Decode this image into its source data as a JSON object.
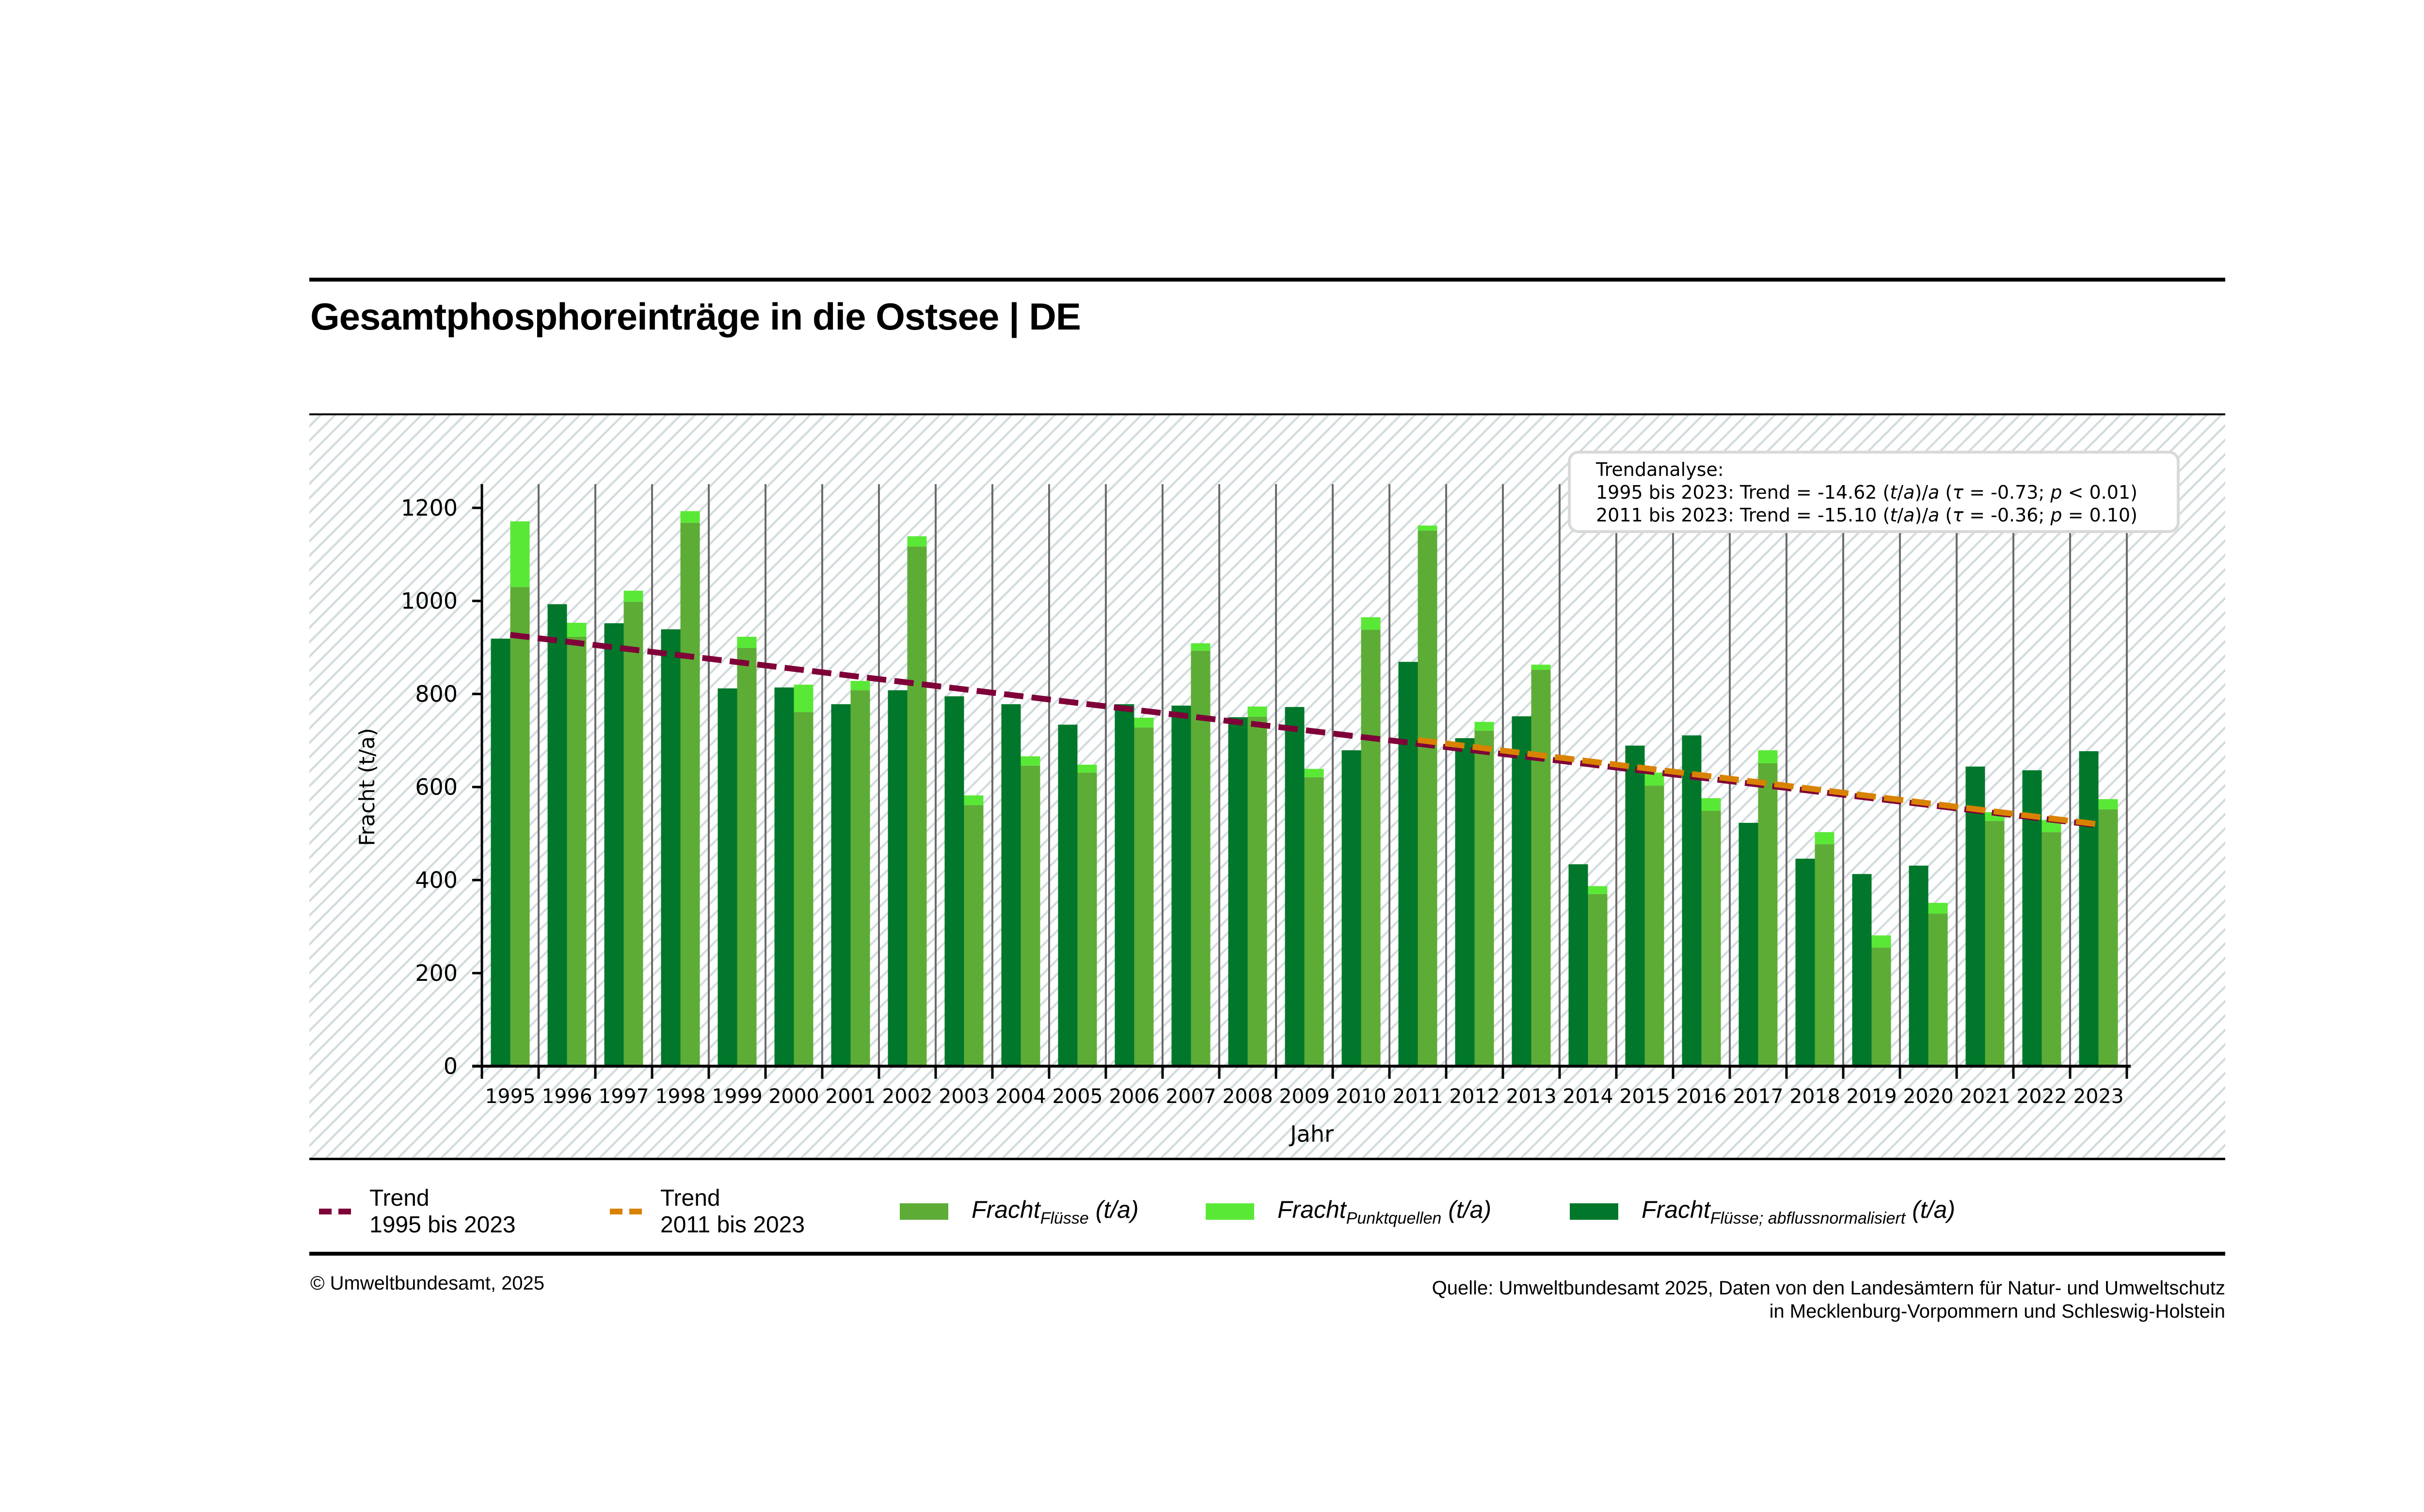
{
  "header": {
    "title": "Gesamtphosphoreinträge in die Ostsee | DE"
  },
  "colors": {
    "fracht_fluesse": "#5dac36",
    "fracht_punktquellen": "#5ae837",
    "fracht_abflussnormalisiert": "#00772b",
    "trend_1995_2023": "#7f0038",
    "trend_2011_2023": "#d98200",
    "hatch": "#d3dcde"
  },
  "annotation": {
    "heading": "Trendanalyse:",
    "lines": [
      {
        "period": "1995 bis 2023",
        "trend": "-14.62",
        "tau": "-0.73",
        "p_op": "<",
        "p": "0.01"
      },
      {
        "period": "2011 bis 2023",
        "trend": "-15.10",
        "tau": "-0.36",
        "p_op": "=",
        "p": "0.10"
      }
    ],
    "trend_label": "Trend =",
    "unit_t": "t",
    "unit_a": "a",
    "tau_symbol": "τ",
    "p_symbol": "p"
  },
  "legend": {
    "trend1": {
      "line1": "Trend",
      "line2": "1995 bis 2023"
    },
    "trend2": {
      "line1": "Trend",
      "line2": "2011 bis 2023"
    },
    "fluesse": {
      "main": "Fracht",
      "sub": "Flüsse",
      "unit": "(t/a)"
    },
    "punktquellen": {
      "main": "Fracht",
      "sub": "Punktquellen",
      "unit": "(t/a)"
    },
    "abfluss": {
      "main": "Fracht",
      "sub": "Flüsse; abflussnormalisiert",
      "unit": "(t/a)"
    }
  },
  "footer": {
    "copyright": "© Umweltbundesamt, 2025",
    "source_line1": "Quelle: Umweltbundesamt 2025, Daten von den Landesämtern für Natur- und Umweltschutz",
    "source_line2": "in Mecklenburg-Vorpommern und Schleswig-Holstein"
  },
  "chart_data": {
    "type": "bar",
    "title": "Gesamtphosphoreinträge in die Ostsee | DE",
    "xlabel": "Jahr",
    "ylabel": "Fracht (t/a)",
    "ylim": [
      0,
      1260
    ],
    "yticks": [
      0,
      200,
      400,
      600,
      800,
      1000,
      1200
    ],
    "grid": "vertical",
    "legend_position": "bottom",
    "categories": [
      "1995",
      "1996",
      "1997",
      "1998",
      "1999",
      "2000",
      "2001",
      "2002",
      "2003",
      "2004",
      "2005",
      "2006",
      "2007",
      "2008",
      "2009",
      "2010",
      "2011",
      "2012",
      "2013",
      "2014",
      "2015",
      "2016",
      "2017",
      "2018",
      "2019",
      "2020",
      "2021",
      "2022",
      "2023"
    ],
    "series": [
      {
        "name": "Fracht Flüsse; abflussnormalisiert (t/a)",
        "key": "abfluss",
        "values": [
          919,
          993,
          952,
          939,
          812,
          814,
          778,
          808,
          795,
          778,
          734,
          778,
          775,
          750,
          772,
          679,
          869,
          705,
          752,
          434,
          689,
          711,
          523,
          446,
          413,
          431,
          644,
          636,
          677
        ]
      },
      {
        "name": "Fracht Flüsse (t/a)",
        "key": "fluesse",
        "values": [
          1030,
          923,
          998,
          1168,
          899,
          761,
          808,
          1117,
          561,
          646,
          631,
          728,
          893,
          751,
          621,
          938,
          1151,
          721,
          852,
          370,
          603,
          549,
          651,
          477,
          255,
          328,
          527,
          503,
          552
        ]
      },
      {
        "name": "Fracht Punktquellen (t/a)",
        "key": "punktquellen",
        "stacked_on": "fluesse",
        "values": [
          141,
          30,
          24,
          25,
          24,
          59,
          20,
          22,
          21,
          20,
          17,
          21,
          16,
          22,
          18,
          27,
          11,
          19,
          11,
          17,
          28,
          27,
          28,
          26,
          26,
          23,
          19,
          26,
          22
        ]
      }
    ],
    "trends": [
      {
        "name": "Trend 1995 bis 2023",
        "from": "1995",
        "to": "2023",
        "start_value": 927,
        "slope": -14.62
      },
      {
        "name": "Trend 2011 bis 2023",
        "from": "2011",
        "to": "2023",
        "start_value": 701,
        "slope": -15.1
      }
    ]
  }
}
